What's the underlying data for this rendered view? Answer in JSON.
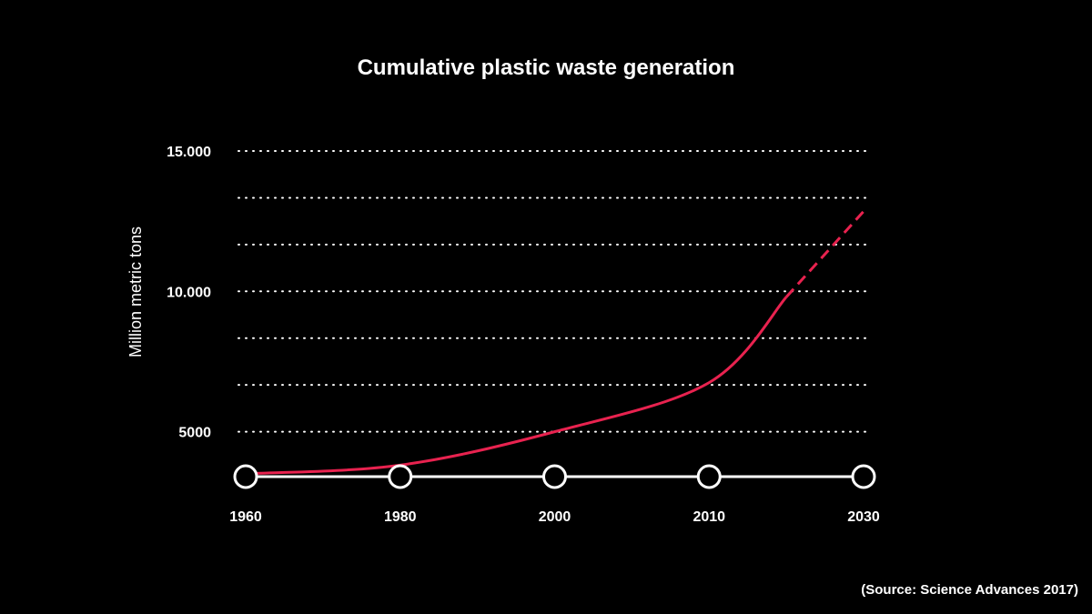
{
  "chart_data": {
    "type": "line",
    "title": "Cumulative plastic waste generation",
    "xlabel": "",
    "ylabel": "Million metric tons",
    "categories": [
      "1960",
      "1980",
      "2000",
      "2010",
      "2030"
    ],
    "ylim": [
      3400,
      15000
    ],
    "y_ticks": [
      {
        "value": 15000,
        "label": "15.000"
      },
      {
        "value": 10000,
        "label": "10.000"
      },
      {
        "value": 5000,
        "label": "5000"
      }
    ],
    "gridlines": [
      5000,
      6667,
      8333,
      10000,
      11667,
      13333,
      15000
    ],
    "series": [
      {
        "color": "#e8224f",
        "points": [
          [
            1960,
            3500
          ],
          [
            1980,
            3810
          ],
          [
            2000,
            5000
          ],
          [
            2010,
            6750
          ],
          [
            2020,
            9800
          ],
          [
            2030,
            12850
          ]
        ],
        "projected_from": 2020
      }
    ],
    "source": "(Source: Science Advances 2017)",
    "colors": {
      "background": "#000000",
      "foreground": "#ffffff",
      "series": "#e8224f"
    }
  }
}
